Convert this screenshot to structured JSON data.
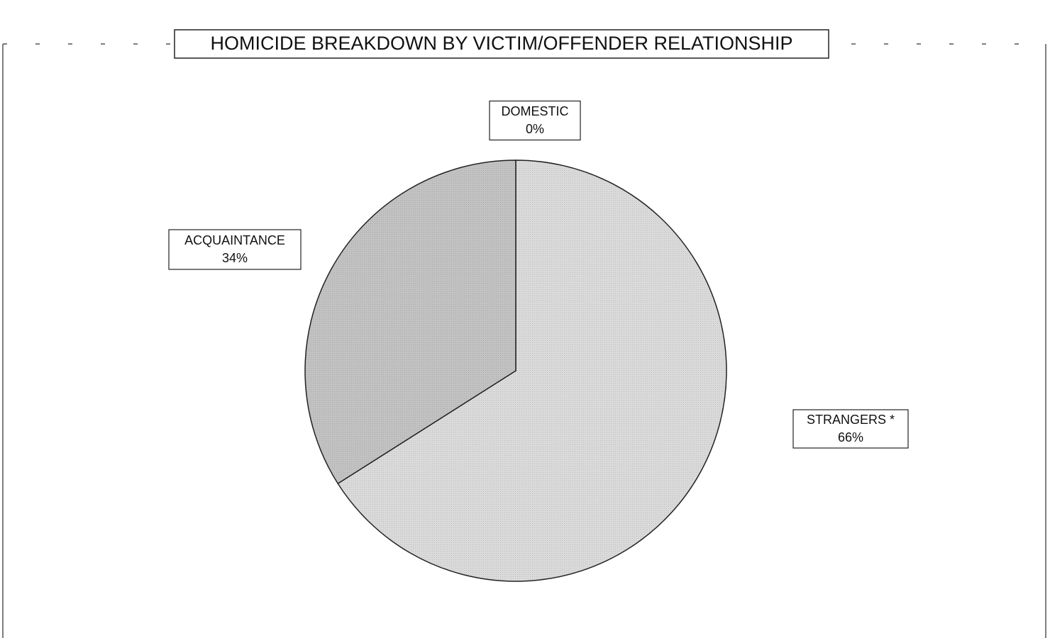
{
  "chart_data": {
    "type": "pie",
    "title": "HOMICIDE BREAKDOWN BY VICTIM/OFFENDER RELATIONSHIP",
    "categories": [
      "DOMESTIC",
      "STRANGERS *",
      "ACQUAINTANCE"
    ],
    "values": [
      0,
      66,
      34
    ],
    "value_labels": [
      "0%",
      "66%",
      "34%"
    ],
    "colors": [
      "#b0b0b0",
      "#dadada",
      "#c2c2c2"
    ]
  }
}
